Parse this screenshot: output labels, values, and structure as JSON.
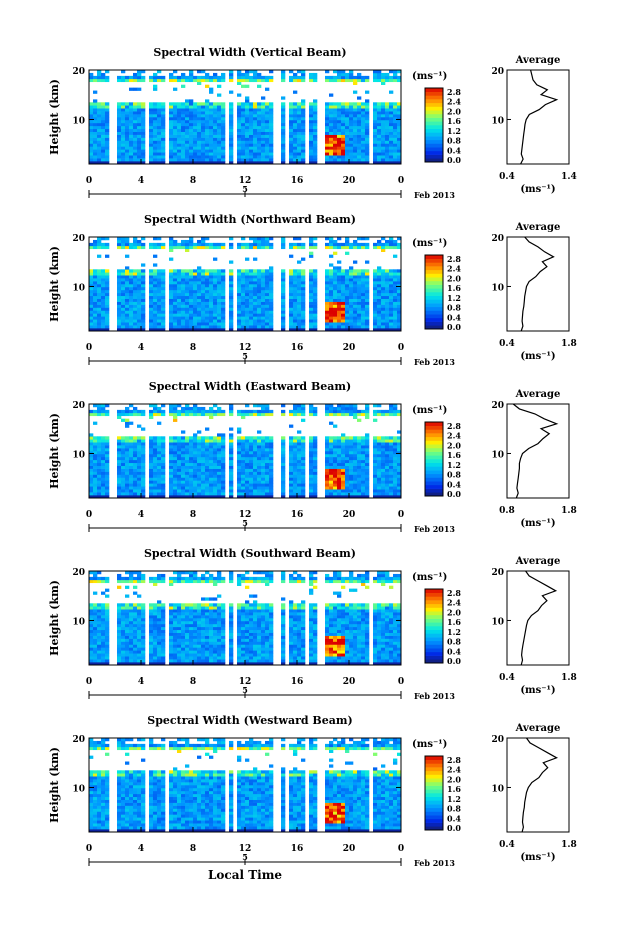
{
  "figure": {
    "x_label": "Local Time",
    "date_label": "Feb 2013",
    "colorbar": {
      "unit": "(ms⁻¹)",
      "ticks": [
        "2.8",
        "2.4",
        "2.0",
        "1.6",
        "1.2",
        "0.8",
        "0.4",
        "0.0"
      ]
    },
    "average_title": "Average",
    "average_unit": "(ms⁻¹)"
  },
  "chart_data": [
    {
      "type": "heatmap",
      "title": "Spectral Width (Vertical Beam)",
      "ylabel": "Height (km)",
      "x_ticks": [
        "0",
        "4",
        "8",
        "12",
        "16",
        "20",
        "0"
      ],
      "day_label": "5",
      "y_ticks": [
        "10",
        "20"
      ],
      "xlim": [
        0,
        24
      ],
      "ylim": [
        1,
        20
      ],
      "gaps": [
        [
          1.6,
          2.1
        ],
        [
          4.2,
          4.7
        ],
        [
          5.9,
          6.3
        ],
        [
          10.5,
          10.8
        ],
        [
          11.2,
          11.5
        ],
        [
          14.2,
          14.7
        ],
        [
          15.2,
          15.5
        ],
        [
          16.5,
          16.9
        ],
        [
          17.6,
          18.0
        ],
        [
          21.4,
          21.8
        ]
      ],
      "average": {
        "xlim": [
          0.4,
          1.4
        ],
        "x_ticks": [
          "0.4",
          "1.4"
        ],
        "height": [
          1,
          2,
          3,
          4,
          5,
          6,
          7,
          8,
          9,
          10,
          11,
          12,
          13,
          14,
          15,
          16,
          17,
          18,
          19,
          20
        ],
        "value": [
          0.62,
          0.66,
          0.63,
          0.64,
          0.65,
          0.66,
          0.67,
          0.68,
          0.69,
          0.71,
          0.76,
          0.92,
          1.02,
          1.2,
          0.95,
          1.05,
          0.88,
          0.82,
          0.8,
          0.78
        ]
      }
    },
    {
      "type": "heatmap",
      "title": "Spectral Width (Northward Beam)",
      "ylabel": "Height (km)",
      "x_ticks": [
        "0",
        "4",
        "8",
        "12",
        "16",
        "20",
        "0"
      ],
      "day_label": "5",
      "y_ticks": [
        "10",
        "20"
      ],
      "xlim": [
        0,
        24
      ],
      "ylim": [
        1,
        20
      ],
      "gaps": [
        [
          1.6,
          2.1
        ],
        [
          4.2,
          4.7
        ],
        [
          5.9,
          6.3
        ],
        [
          10.5,
          10.8
        ],
        [
          11.2,
          11.5
        ],
        [
          14.2,
          14.7
        ],
        [
          15.2,
          15.5
        ],
        [
          16.5,
          16.9
        ],
        [
          17.6,
          18.0
        ],
        [
          21.4,
          21.8
        ]
      ],
      "average": {
        "xlim": [
          0.4,
          1.8
        ],
        "x_ticks": [
          "0.4",
          "1.8"
        ],
        "height": [
          1,
          2,
          3,
          4,
          5,
          6,
          7,
          8,
          9,
          10,
          11,
          12,
          13,
          14,
          15,
          16,
          17,
          18,
          19,
          20
        ],
        "value": [
          0.72,
          0.76,
          0.74,
          0.75,
          0.76,
          0.78,
          0.79,
          0.8,
          0.82,
          0.84,
          0.9,
          1.05,
          1.15,
          1.3,
          1.2,
          1.45,
          1.25,
          1.1,
          0.9,
          0.8
        ]
      }
    },
    {
      "type": "heatmap",
      "title": "Spectral Width (Eastward Beam)",
      "ylabel": "Height (km)",
      "x_ticks": [
        "0",
        "4",
        "8",
        "12",
        "16",
        "20",
        "0"
      ],
      "day_label": "5",
      "y_ticks": [
        "10",
        "20"
      ],
      "xlim": [
        0,
        24
      ],
      "ylim": [
        1,
        20
      ],
      "gaps": [
        [
          1.6,
          2.1
        ],
        [
          4.2,
          4.7
        ],
        [
          5.9,
          6.3
        ],
        [
          10.5,
          10.8
        ],
        [
          11.2,
          11.5
        ],
        [
          14.2,
          14.7
        ],
        [
          15.2,
          15.5
        ],
        [
          16.5,
          16.9
        ],
        [
          17.6,
          18.0
        ],
        [
          21.4,
          21.8
        ]
      ],
      "average": {
        "xlim": [
          0.8,
          1.8
        ],
        "x_ticks": [
          "0.8",
          "1.8"
        ],
        "height": [
          1,
          2,
          3,
          4,
          5,
          6,
          7,
          8,
          9,
          10,
          11,
          12,
          13,
          14,
          15,
          16,
          17,
          18,
          19,
          20
        ],
        "value": [
          0.95,
          0.98,
          0.96,
          0.97,
          0.98,
          0.99,
          1.0,
          1.0,
          1.02,
          1.05,
          1.15,
          1.3,
          1.38,
          1.48,
          1.35,
          1.6,
          1.4,
          1.25,
          1.0,
          0.9
        ]
      }
    },
    {
      "type": "heatmap",
      "title": "Spectral Width (Southward Beam)",
      "ylabel": "Height (km)",
      "x_ticks": [
        "0",
        "4",
        "8",
        "12",
        "16",
        "20",
        "0"
      ],
      "day_label": "5",
      "y_ticks": [
        "10",
        "20"
      ],
      "xlim": [
        0,
        24
      ],
      "ylim": [
        1,
        20
      ],
      "gaps": [
        [
          1.6,
          2.1
        ],
        [
          4.2,
          4.7
        ],
        [
          5.9,
          6.3
        ],
        [
          10.5,
          10.8
        ],
        [
          11.2,
          11.5
        ],
        [
          14.2,
          14.7
        ],
        [
          15.2,
          15.5
        ],
        [
          16.5,
          16.9
        ],
        [
          17.6,
          18.0
        ],
        [
          21.4,
          21.8
        ]
      ],
      "average": {
        "xlim": [
          0.4,
          1.8
        ],
        "x_ticks": [
          "0.4",
          "1.8"
        ],
        "height": [
          1,
          2,
          3,
          4,
          5,
          6,
          7,
          8,
          9,
          10,
          11,
          12,
          13,
          14,
          15,
          16,
          17,
          18,
          19,
          20
        ],
        "value": [
          0.72,
          0.75,
          0.73,
          0.74,
          0.76,
          0.78,
          0.8,
          0.82,
          0.84,
          0.87,
          0.95,
          1.1,
          1.18,
          1.3,
          1.2,
          1.5,
          1.3,
          1.1,
          0.9,
          0.82
        ]
      }
    },
    {
      "type": "heatmap",
      "title": "Spectral Width (Westward Beam)",
      "ylabel": "Height (km)",
      "x_ticks": [
        "0",
        "4",
        "8",
        "12",
        "16",
        "20",
        "0"
      ],
      "day_label": "5",
      "y_ticks": [
        "10",
        "20"
      ],
      "xlim": [
        0,
        24
      ],
      "ylim": [
        1,
        20
      ],
      "gaps": [
        [
          1.6,
          2.1
        ],
        [
          4.2,
          4.7
        ],
        [
          5.9,
          6.3
        ],
        [
          10.5,
          10.8
        ],
        [
          11.2,
          11.5
        ],
        [
          14.2,
          14.7
        ],
        [
          15.2,
          15.5
        ],
        [
          16.5,
          16.9
        ],
        [
          17.6,
          18.0
        ],
        [
          21.4,
          21.8
        ]
      ],
      "average": {
        "xlim": [
          0.4,
          1.8
        ],
        "x_ticks": [
          "0.4",
          "1.8"
        ],
        "height": [
          1,
          2,
          3,
          4,
          5,
          6,
          7,
          8,
          9,
          10,
          11,
          12,
          13,
          14,
          15,
          16,
          17,
          18,
          19,
          20
        ],
        "value": [
          0.74,
          0.77,
          0.75,
          0.76,
          0.77,
          0.79,
          0.8,
          0.82,
          0.84,
          0.88,
          0.96,
          1.12,
          1.2,
          1.32,
          1.22,
          1.52,
          1.32,
          1.12,
          0.92,
          0.84
        ]
      }
    }
  ]
}
